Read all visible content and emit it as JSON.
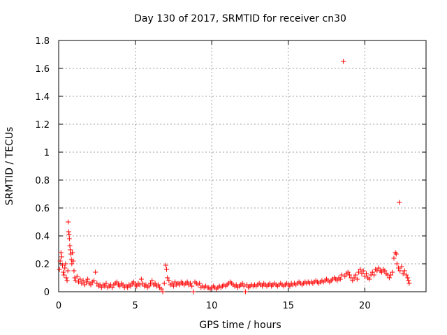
{
  "chart_data": {
    "type": "scatter",
    "title": "Day 130 of 2017, SRMTID for receiver cn30",
    "xlabel": "GPS time / hours",
    "ylabel": "SRMTID / TECUs",
    "xlim": [
      0,
      24
    ],
    "ylim": [
      0,
      1.8
    ],
    "xticks": [
      0,
      5,
      10,
      15,
      20
    ],
    "xtick_labels": [
      "0",
      "5",
      "10",
      "15",
      "20"
    ],
    "yticks": [
      0,
      0.2,
      0.4,
      0.6,
      0.8,
      1.0,
      1.2,
      1.4,
      1.6,
      1.8
    ],
    "ytick_labels": [
      "0",
      "0.2",
      "0.4",
      "0.6",
      "0.8",
      "1",
      "1.2",
      "1.4",
      "1.6",
      "1.8"
    ],
    "grid": true,
    "marker": "+",
    "color": "#ff0000",
    "series": [
      {
        "name": "SRMTID",
        "points": [
          [
            0.05,
            0.16
          ],
          [
            0.1,
            0.22
          ],
          [
            0.15,
            0.28
          ],
          [
            0.2,
            0.25
          ],
          [
            0.25,
            0.19
          ],
          [
            0.3,
            0.14
          ],
          [
            0.35,
            0.12
          ],
          [
            0.4,
            0.17
          ],
          [
            0.45,
            0.2
          ],
          [
            0.5,
            0.1
          ],
          [
            0.55,
            0.08
          ],
          [
            0.6,
            0.15
          ],
          [
            0.62,
            0.5
          ],
          [
            0.65,
            0.43
          ],
          [
            0.68,
            0.41
          ],
          [
            0.7,
            0.38
          ],
          [
            0.73,
            0.33
          ],
          [
            0.76,
            0.3
          ],
          [
            0.8,
            0.27
          ],
          [
            0.83,
            0.23
          ],
          [
            0.86,
            0.2
          ],
          [
            0.9,
            0.28
          ],
          [
            0.95,
            0.22
          ],
          [
            1.0,
            0.15
          ],
          [
            1.05,
            0.1
          ],
          [
            1.1,
            0.08
          ],
          [
            1.2,
            0.11
          ],
          [
            1.3,
            0.07
          ],
          [
            1.4,
            0.09
          ],
          [
            1.5,
            0.06
          ],
          [
            1.6,
            0.08
          ],
          [
            1.7,
            0.05
          ],
          [
            1.8,
            0.07
          ],
          [
            1.9,
            0.09
          ],
          [
            2.0,
            0.06
          ],
          [
            2.1,
            0.05
          ],
          [
            2.2,
            0.07
          ],
          [
            2.3,
            0.08
          ],
          [
            2.4,
            0.14
          ],
          [
            2.5,
            0.06
          ],
          [
            2.6,
            0.04
          ],
          [
            2.7,
            0.05
          ],
          [
            2.8,
            0.03
          ],
          [
            2.9,
            0.05
          ],
          [
            3.0,
            0.04
          ],
          [
            3.1,
            0.06
          ],
          [
            3.2,
            0.03
          ],
          [
            3.3,
            0.04
          ],
          [
            3.4,
            0.05
          ],
          [
            3.5,
            0.03
          ],
          [
            3.6,
            0.05
          ],
          [
            3.7,
            0.06
          ],
          [
            3.8,
            0.07
          ],
          [
            3.9,
            0.05
          ],
          [
            4.0,
            0.04
          ],
          [
            4.1,
            0.06
          ],
          [
            4.2,
            0.05
          ],
          [
            4.3,
            0.03
          ],
          [
            4.4,
            0.04
          ],
          [
            4.5,
            0.03
          ],
          [
            4.6,
            0.05
          ],
          [
            4.7,
            0.04
          ],
          [
            4.8,
            0.06
          ],
          [
            4.9,
            0.07
          ],
          [
            5.0,
            0.05
          ],
          [
            5.1,
            0.04
          ],
          [
            5.2,
            0.06
          ],
          [
            5.3,
            0.05
          ],
          [
            5.4,
            0.09
          ],
          [
            5.5,
            0.06
          ],
          [
            5.6,
            0.04
          ],
          [
            5.7,
            0.05
          ],
          [
            5.8,
            0.03
          ],
          [
            5.9,
            0.04
          ],
          [
            6.0,
            0.06
          ],
          [
            6.1,
            0.08
          ],
          [
            6.2,
            0.05
          ],
          [
            6.3,
            0.06
          ],
          [
            6.4,
            0.04
          ],
          [
            6.5,
            0.05
          ],
          [
            6.6,
            0.03
          ],
          [
            6.7,
            0.02
          ],
          [
            6.8,
            0.0
          ],
          [
            6.9,
            0.06
          ],
          [
            7.0,
            0.19
          ],
          [
            7.05,
            0.16
          ],
          [
            7.1,
            0.1
          ],
          [
            7.2,
            0.08
          ],
          [
            7.3,
            0.05
          ],
          [
            7.4,
            0.06
          ],
          [
            7.5,
            0.04
          ],
          [
            7.6,
            0.07
          ],
          [
            7.7,
            0.05
          ],
          [
            7.8,
            0.06
          ],
          [
            7.9,
            0.05
          ],
          [
            8.0,
            0.07
          ],
          [
            8.1,
            0.06
          ],
          [
            8.2,
            0.05
          ],
          [
            8.3,
            0.06
          ],
          [
            8.4,
            0.07
          ],
          [
            8.5,
            0.05
          ],
          [
            8.6,
            0.06
          ],
          [
            8.7,
            0.04
          ],
          [
            8.8,
            0.0
          ],
          [
            8.9,
            0.07
          ],
          [
            9.0,
            0.06
          ],
          [
            9.1,
            0.05
          ],
          [
            9.2,
            0.06
          ],
          [
            9.3,
            0.03
          ],
          [
            9.4,
            0.04
          ],
          [
            9.5,
            0.03
          ],
          [
            9.6,
            0.04
          ],
          [
            9.7,
            0.03
          ],
          [
            9.8,
            0.03
          ],
          [
            9.9,
            0.02
          ],
          [
            10.0,
            0.03
          ],
          [
            10.1,
            0.04
          ],
          [
            10.2,
            0.03
          ],
          [
            10.3,
            0.02
          ],
          [
            10.4,
            0.03
          ],
          [
            10.5,
            0.04
          ],
          [
            10.6,
            0.03
          ],
          [
            10.7,
            0.04
          ],
          [
            10.8,
            0.05
          ],
          [
            10.9,
            0.04
          ],
          [
            11.0,
            0.05
          ],
          [
            11.1,
            0.06
          ],
          [
            11.2,
            0.07
          ],
          [
            11.3,
            0.06
          ],
          [
            11.4,
            0.05
          ],
          [
            11.5,
            0.04
          ],
          [
            11.6,
            0.05
          ],
          [
            11.7,
            0.03
          ],
          [
            11.8,
            0.04
          ],
          [
            11.9,
            0.05
          ],
          [
            12.0,
            0.06
          ],
          [
            12.1,
            0.04
          ],
          [
            12.2,
            0.0
          ],
          [
            12.3,
            0.05
          ],
          [
            12.4,
            0.03
          ],
          [
            12.5,
            0.04
          ],
          [
            12.6,
            0.05
          ],
          [
            12.7,
            0.04
          ],
          [
            12.8,
            0.05
          ],
          [
            12.9,
            0.04
          ],
          [
            13.0,
            0.05
          ],
          [
            13.1,
            0.06
          ],
          [
            13.2,
            0.05
          ],
          [
            13.3,
            0.04
          ],
          [
            13.4,
            0.06
          ],
          [
            13.5,
            0.05
          ],
          [
            13.6,
            0.04
          ],
          [
            13.7,
            0.05
          ],
          [
            13.8,
            0.06
          ],
          [
            13.9,
            0.04
          ],
          [
            14.0,
            0.05
          ],
          [
            14.1,
            0.06
          ],
          [
            14.2,
            0.05
          ],
          [
            14.3,
            0.04
          ],
          [
            14.4,
            0.05
          ],
          [
            14.5,
            0.06
          ],
          [
            14.6,
            0.05
          ],
          [
            14.7,
            0.04
          ],
          [
            14.8,
            0.05
          ],
          [
            14.9,
            0.06
          ],
          [
            15.0,
            0.05
          ],
          [
            15.1,
            0.04
          ],
          [
            15.2,
            0.06
          ],
          [
            15.3,
            0.05
          ],
          [
            15.4,
            0.06
          ],
          [
            15.5,
            0.05
          ],
          [
            15.6,
            0.06
          ],
          [
            15.7,
            0.07
          ],
          [
            15.8,
            0.06
          ],
          [
            15.9,
            0.05
          ],
          [
            16.0,
            0.06
          ],
          [
            16.1,
            0.07
          ],
          [
            16.2,
            0.06
          ],
          [
            16.3,
            0.07
          ],
          [
            16.4,
            0.06
          ],
          [
            16.5,
            0.07
          ],
          [
            16.6,
            0.06
          ],
          [
            16.7,
            0.07
          ],
          [
            16.8,
            0.08
          ],
          [
            16.9,
            0.07
          ],
          [
            17.0,
            0.06
          ],
          [
            17.1,
            0.07
          ],
          [
            17.2,
            0.08
          ],
          [
            17.3,
            0.07
          ],
          [
            17.4,
            0.08
          ],
          [
            17.5,
            0.09
          ],
          [
            17.6,
            0.08
          ],
          [
            17.7,
            0.07
          ],
          [
            17.8,
            0.08
          ],
          [
            17.9,
            0.09
          ],
          [
            18.0,
            0.1
          ],
          [
            18.1,
            0.09
          ],
          [
            18.2,
            0.08
          ],
          [
            18.3,
            0.1
          ],
          [
            18.4,
            0.09
          ],
          [
            18.5,
            0.12
          ],
          [
            18.6,
            1.65
          ],
          [
            18.7,
            0.11
          ],
          [
            18.8,
            0.13
          ],
          [
            18.9,
            0.14
          ],
          [
            19.0,
            0.12
          ],
          [
            19.1,
            0.1
          ],
          [
            19.2,
            0.08
          ],
          [
            19.3,
            0.1
          ],
          [
            19.4,
            0.12
          ],
          [
            19.5,
            0.09
          ],
          [
            19.6,
            0.14
          ],
          [
            19.7,
            0.16
          ],
          [
            19.8,
            0.13
          ],
          [
            19.9,
            0.15
          ],
          [
            20.0,
            0.11
          ],
          [
            20.1,
            0.13
          ],
          [
            20.2,
            0.1
          ],
          [
            20.3,
            0.09
          ],
          [
            20.4,
            0.12
          ],
          [
            20.5,
            0.14
          ],
          [
            20.6,
            0.12
          ],
          [
            20.7,
            0.16
          ],
          [
            20.8,
            0.15
          ],
          [
            20.9,
            0.17
          ],
          [
            21.0,
            0.15
          ],
          [
            21.1,
            0.14
          ],
          [
            21.2,
            0.16
          ],
          [
            21.3,
            0.15
          ],
          [
            21.4,
            0.13
          ],
          [
            21.5,
            0.12
          ],
          [
            21.6,
            0.1
          ],
          [
            21.7,
            0.12
          ],
          [
            21.8,
            0.14
          ],
          [
            21.9,
            0.24
          ],
          [
            22.0,
            0.28
          ],
          [
            22.05,
            0.27
          ],
          [
            22.1,
            0.2
          ],
          [
            22.2,
            0.17
          ],
          [
            22.25,
            0.64
          ],
          [
            22.3,
            0.15
          ],
          [
            22.4,
            0.18
          ],
          [
            22.5,
            0.13
          ],
          [
            22.6,
            0.15
          ],
          [
            22.7,
            0.12
          ],
          [
            22.8,
            0.1
          ],
          [
            22.85,
            0.08
          ],
          [
            22.9,
            0.06
          ]
        ]
      }
    ]
  }
}
